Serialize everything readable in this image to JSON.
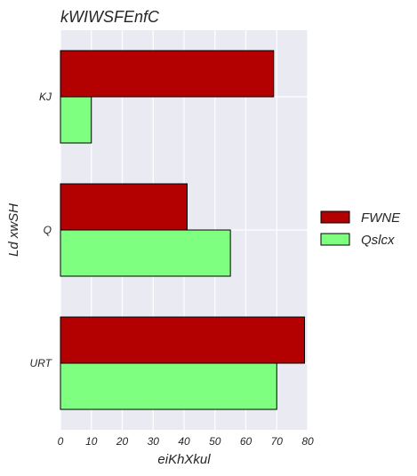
{
  "chart_data": {
    "type": "bar",
    "orientation": "horizontal",
    "title": "kWIWSFEnfC",
    "xlabel": "eiKhXkul",
    "ylabel": "Ld xwSH",
    "categories": [
      "KJ",
      "Q",
      "URT"
    ],
    "series": [
      {
        "name": "FWNE",
        "values": [
          69,
          41,
          79
        ],
        "color": "#b30000"
      },
      {
        "name": "Qslcx",
        "values": [
          10,
          55,
          70
        ],
        "color": "#7fff7f"
      }
    ],
    "xlim": [
      0,
      80
    ],
    "xticks": [
      "0",
      "10",
      "20",
      "30",
      "40",
      "50",
      "60",
      "70",
      "80"
    ],
    "grid": true,
    "legend_position": "right",
    "colors": {
      "plot_background": "#eaeaf2",
      "grid": "#ffffff",
      "bar_edge": "#000000"
    }
  }
}
